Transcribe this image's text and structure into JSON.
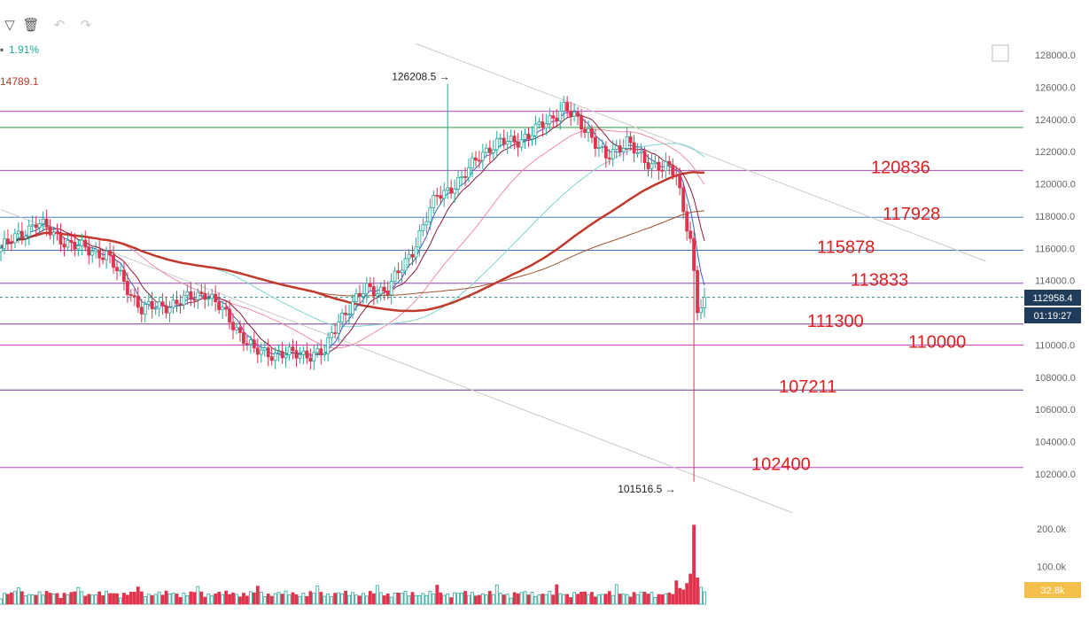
{
  "toolbar": {
    "icons": [
      "filter-icon",
      "trash-icon",
      "undo-icon",
      "redo-icon",
      "expand-icon"
    ]
  },
  "indicators": {
    "change": "1.91%",
    "ma_value": "14789.1"
  },
  "colors": {
    "up": "#26a69a",
    "down": "#e0334c",
    "ma5": "#3a5fc8",
    "ma10": "#8a1a3a",
    "ma30": "#f08aa6",
    "ma60": "#7fd4d0",
    "ma200": "#a0522d",
    "ma_thick": "#c0392b",
    "level_text": "#e02020",
    "price_tag": "#1f3c5a",
    "volume_tag": "#f5c04a"
  },
  "chart_data": {
    "type": "candlestick",
    "y_axis": {
      "range": [
        101000,
        128900
      ],
      "ticks": [
        128000,
        126000,
        124000,
        122000,
        120000,
        118000,
        116000,
        114000,
        112000,
        110000,
        108000,
        106000,
        104000,
        102000
      ],
      "tick_labels": [
        "128000.0",
        "126000.0",
        "124000.0",
        "122000.0",
        "120000.0",
        "118000.0",
        "116000.0",
        "114000.0",
        "112000.0",
        "110000.0",
        "108000.0",
        "106000.0",
        "104000.0",
        "102000.0"
      ]
    },
    "volume_axis": {
      "range": [
        0,
        225000
      ],
      "ticks": [
        200000,
        100000
      ],
      "tick_labels": [
        "200.0k",
        "100.0k"
      ]
    },
    "current_price": 112958.4,
    "current_price_label": "112958.4",
    "countdown_label": "01:19:27",
    "current_volume_label": "32.8k",
    "annotations": [
      {
        "label": "126208.5 →",
        "price": 126208.5,
        "index": 127
      },
      {
        "label": "101516.5 →",
        "price": 101516.5,
        "index": 193
      }
    ],
    "levels": [
      {
        "price": 124500,
        "color": "#c63fc6"
      },
      {
        "price": 123500,
        "color": "#2e9e3a"
      },
      {
        "price": 120836,
        "label": "120836",
        "color": "#a64fb0"
      },
      {
        "price": 117928,
        "label": "117928",
        "color": "#4a7bbf"
      },
      {
        "price": 115878,
        "label": "115878",
        "color": "#3a6fb5"
      },
      {
        "price": 113833,
        "label": "113833",
        "color": "#8e44ad"
      },
      {
        "price": 111300,
        "label": "111300",
        "color": "#7d3c98"
      },
      {
        "price": 110000,
        "label": "110000",
        "color": "#c63fc6"
      },
      {
        "price": 107211,
        "label": "107211",
        "color": "#6c3483"
      },
      {
        "price": 102400,
        "label": "102400",
        "color": "#c63fc6"
      }
    ],
    "trendlines": [
      {
        "from": {
          "index": 118,
          "price": 128700
        },
        "to": {
          "index": 280,
          "price": 115200
        }
      },
      {
        "from": {
          "index": 0,
          "price": 118400
        },
        "to": {
          "index": 225,
          "price": 99600
        }
      }
    ],
    "key_points": [
      {
        "index": 0,
        "price": 116000
      },
      {
        "index": 10,
        "price": 117600
      },
      {
        "index": 20,
        "price": 116200
      },
      {
        "index": 30,
        "price": 115600
      },
      {
        "index": 40,
        "price": 112200
      },
      {
        "index": 50,
        "price": 112600
      },
      {
        "index": 58,
        "price": 113300
      },
      {
        "index": 65,
        "price": 111600
      },
      {
        "index": 72,
        "price": 109600
      },
      {
        "index": 82,
        "price": 109400
      },
      {
        "index": 92,
        "price": 109500
      },
      {
        "index": 96,
        "price": 111600
      },
      {
        "index": 104,
        "price": 113500
      },
      {
        "index": 110,
        "price": 113400
      },
      {
        "index": 117,
        "price": 115900
      },
      {
        "index": 124,
        "price": 119300
      },
      {
        "index": 131,
        "price": 120200
      },
      {
        "index": 136,
        "price": 121900
      },
      {
        "index": 143,
        "price": 122600
      },
      {
        "index": 150,
        "price": 122900
      },
      {
        "index": 155,
        "price": 123900
      },
      {
        "index": 160,
        "price": 124700
      },
      {
        "index": 167,
        "price": 123300
      },
      {
        "index": 172,
        "price": 121500
      },
      {
        "index": 178,
        "price": 122800
      },
      {
        "index": 183,
        "price": 121200
      },
      {
        "index": 189,
        "price": 121200
      },
      {
        "index": 192,
        "price": 120400
      },
      {
        "index": 194,
        "price": 118200
      },
      {
        "index": 196,
        "price": 116700
      },
      {
        "index": 198,
        "price": 112300
      },
      {
        "index": 200,
        "price": 112958
      }
    ]
  }
}
